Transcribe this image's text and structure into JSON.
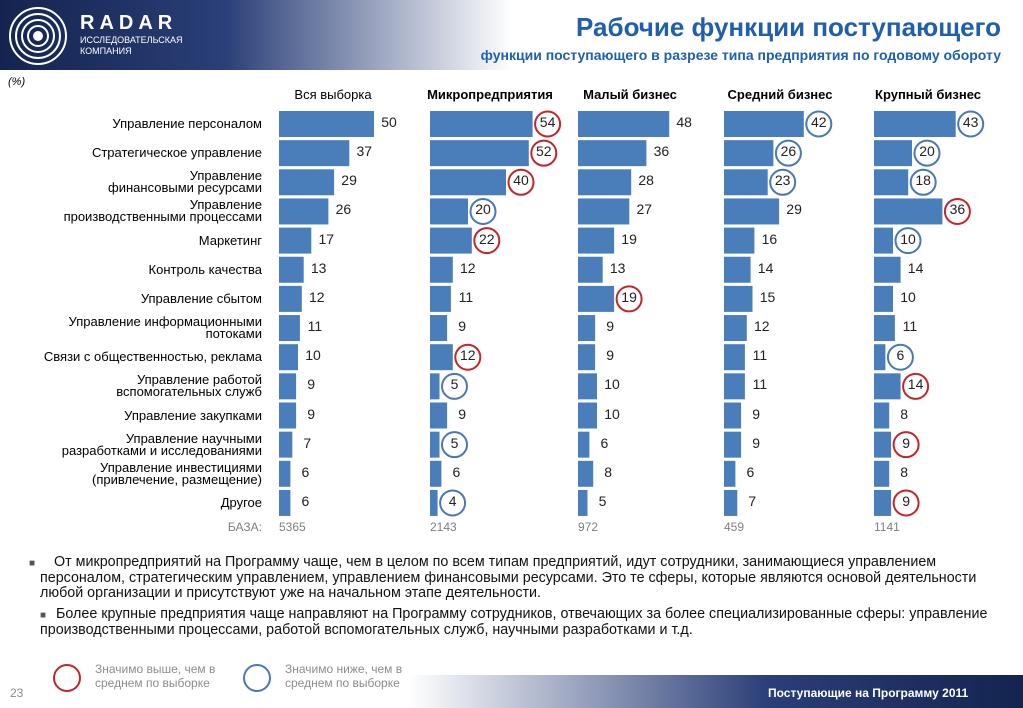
{
  "logo": {
    "name": "RADAR",
    "tagline": "ИССЛЕДОВАТЕЛЬСКАЯ\nКОМПАНИЯ"
  },
  "header": {
    "title": "Рабочие функции поступающего",
    "subtitle": "функции поступающего в разрезе типа предприятия по годовому обороту"
  },
  "chart_data": {
    "type": "bar",
    "orientation": "horizontal",
    "unit_label": "(%)",
    "categories": [
      "Управление персоналом",
      "Стратегическое управление",
      "Управление\nфинансовыми ресурсами",
      "Управление\nпроизводственными процессами",
      "Маркетинг",
      "Контроль качества",
      "Управление сбытом",
      "Управление информационными\nпотоками",
      "Связи с общественностью, реклама",
      "Управление работой\nвспомогательных служб",
      "Управление закупками",
      "Управление научными\nразработками и исследованиями",
      "Управление инвестициями\n(привлечение, размещение)",
      "Другое"
    ],
    "base_label": "БАЗА:",
    "significance_colors": {
      "high": "#c0272d",
      "low": "#4a78b5"
    },
    "series": [
      {
        "name": "Вся выборка",
        "color": "#4a7ebb",
        "base": 5365,
        "values": [
          50,
          37,
          29,
          26,
          17,
          13,
          12,
          11,
          10,
          9,
          9,
          7,
          6,
          6
        ],
        "significance": [
          null,
          null,
          null,
          null,
          null,
          null,
          null,
          null,
          null,
          null,
          null,
          null,
          null,
          null
        ]
      },
      {
        "name": "Микропредприятия",
        "color": "#4a7ebb",
        "base": 2143,
        "values": [
          54,
          52,
          40,
          20,
          22,
          12,
          11,
          9,
          12,
          5,
          9,
          5,
          6,
          4
        ],
        "significance": [
          "high",
          "high",
          "high",
          "low",
          "high",
          null,
          null,
          null,
          "high",
          "low",
          null,
          "low",
          null,
          "low"
        ]
      },
      {
        "name": "Малый бизнес",
        "color": "#4a7ebb",
        "base": 972,
        "values": [
          48,
          36,
          28,
          27,
          19,
          13,
          19,
          9,
          9,
          10,
          10,
          6,
          8,
          5
        ],
        "significance": [
          null,
          null,
          null,
          null,
          null,
          null,
          "high",
          null,
          null,
          null,
          null,
          null,
          null,
          null
        ]
      },
      {
        "name": "Средний бизнес",
        "color": "#4a7ebb",
        "base": 459,
        "values": [
          42,
          26,
          23,
          29,
          16,
          14,
          15,
          12,
          11,
          11,
          9,
          9,
          6,
          7
        ],
        "significance": [
          "low",
          "low",
          "low",
          null,
          null,
          null,
          null,
          null,
          null,
          null,
          null,
          null,
          null,
          null
        ]
      },
      {
        "name": "Крупный бизнес",
        "color": "#4a7ebb",
        "base": 1141,
        "values": [
          43,
          20,
          18,
          36,
          10,
          14,
          10,
          11,
          6,
          14,
          8,
          9,
          8,
          9
        ],
        "significance": [
          "low",
          "low",
          "low",
          "high",
          "low",
          null,
          null,
          null,
          "low",
          "high",
          null,
          "high",
          null,
          "high"
        ]
      }
    ]
  },
  "notes": [
    "От микропредприятий на Программу чаще, чем в целом по всем типам предприятий, идут сотрудники, занимающиеся управлением персоналом, стратегическим управлением, управлением финансовыми ресурсами. Это те сферы, которые являются основой деятельности любой организации и присутствуют уже на начальном этапе деятельности.",
    "Более крупные предприятия чаще направляют на Программу сотрудников, отвечающих за более специализированные сферы: управление производственными процессами, работой вспомогательных служб, научными разработками и т.д."
  ],
  "legend": {
    "high": "Значимо выше, чем в\nсреднем по выборке",
    "low": "Значимо ниже, чем в\nсреднем по выборке"
  },
  "footer": {
    "page": "23",
    "text": "Поступающие на Программу 2011"
  }
}
